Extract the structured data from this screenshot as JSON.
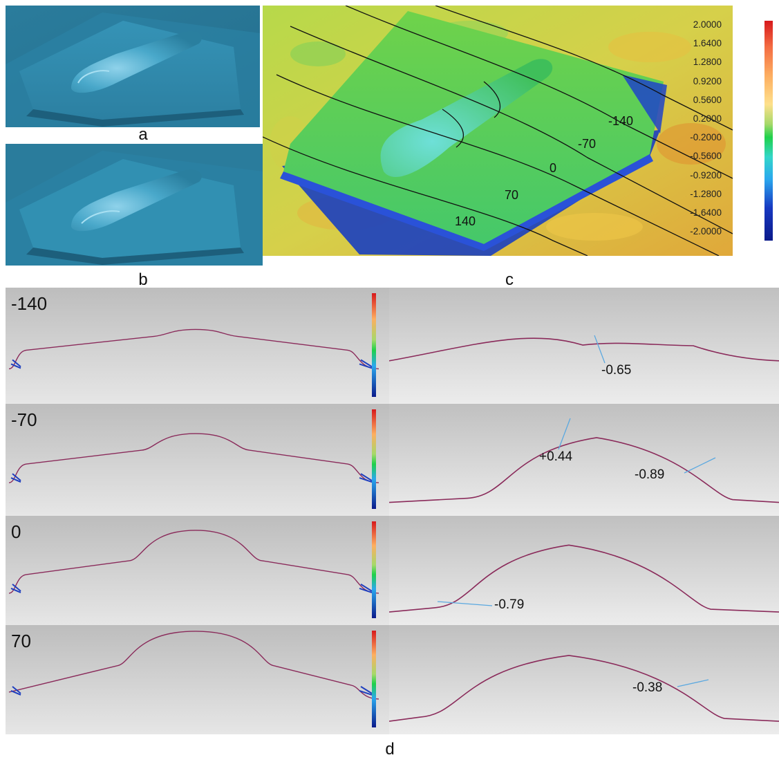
{
  "panels": {
    "a_label": "a",
    "b_label": "b",
    "c_label": "c",
    "d_label": "d"
  },
  "colorbar": {
    "ticks": [
      "2.0000",
      "1.6400",
      "1.2800",
      "0.9200",
      "0.5600",
      "0.2000",
      "-0.2000",
      "-0.5600",
      "-0.9200",
      "-1.2800",
      "-1.6400",
      "-2.0000"
    ],
    "colors": [
      "#d7191c",
      "#f03b20",
      "#fd8d3c",
      "#fdae61",
      "#fee08b",
      "#c7e85a",
      "#35d24a",
      "#33d6c9",
      "#2aa8ee",
      "#1f6fe0",
      "#1739c2",
      "#0b1a8a"
    ]
  },
  "contour_labels": [
    "-140",
    "-70",
    "0",
    "70",
    "140"
  ],
  "sections": [
    {
      "label": "-140",
      "annotations": [
        "-0.65"
      ]
    },
    {
      "label": "-70",
      "annotations": [
        "+0.44",
        "-0.89"
      ]
    },
    {
      "label": "0",
      "annotations": [
        "-0.79"
      ]
    },
    {
      "label": "70",
      "annotations": [
        "-0.38"
      ]
    }
  ],
  "colors": {
    "scan_blue": "#2e87a8",
    "profile_line": "#8a2a5a",
    "annotation_line": "#5aa8e0",
    "section_bg": "#c4c4c4"
  }
}
